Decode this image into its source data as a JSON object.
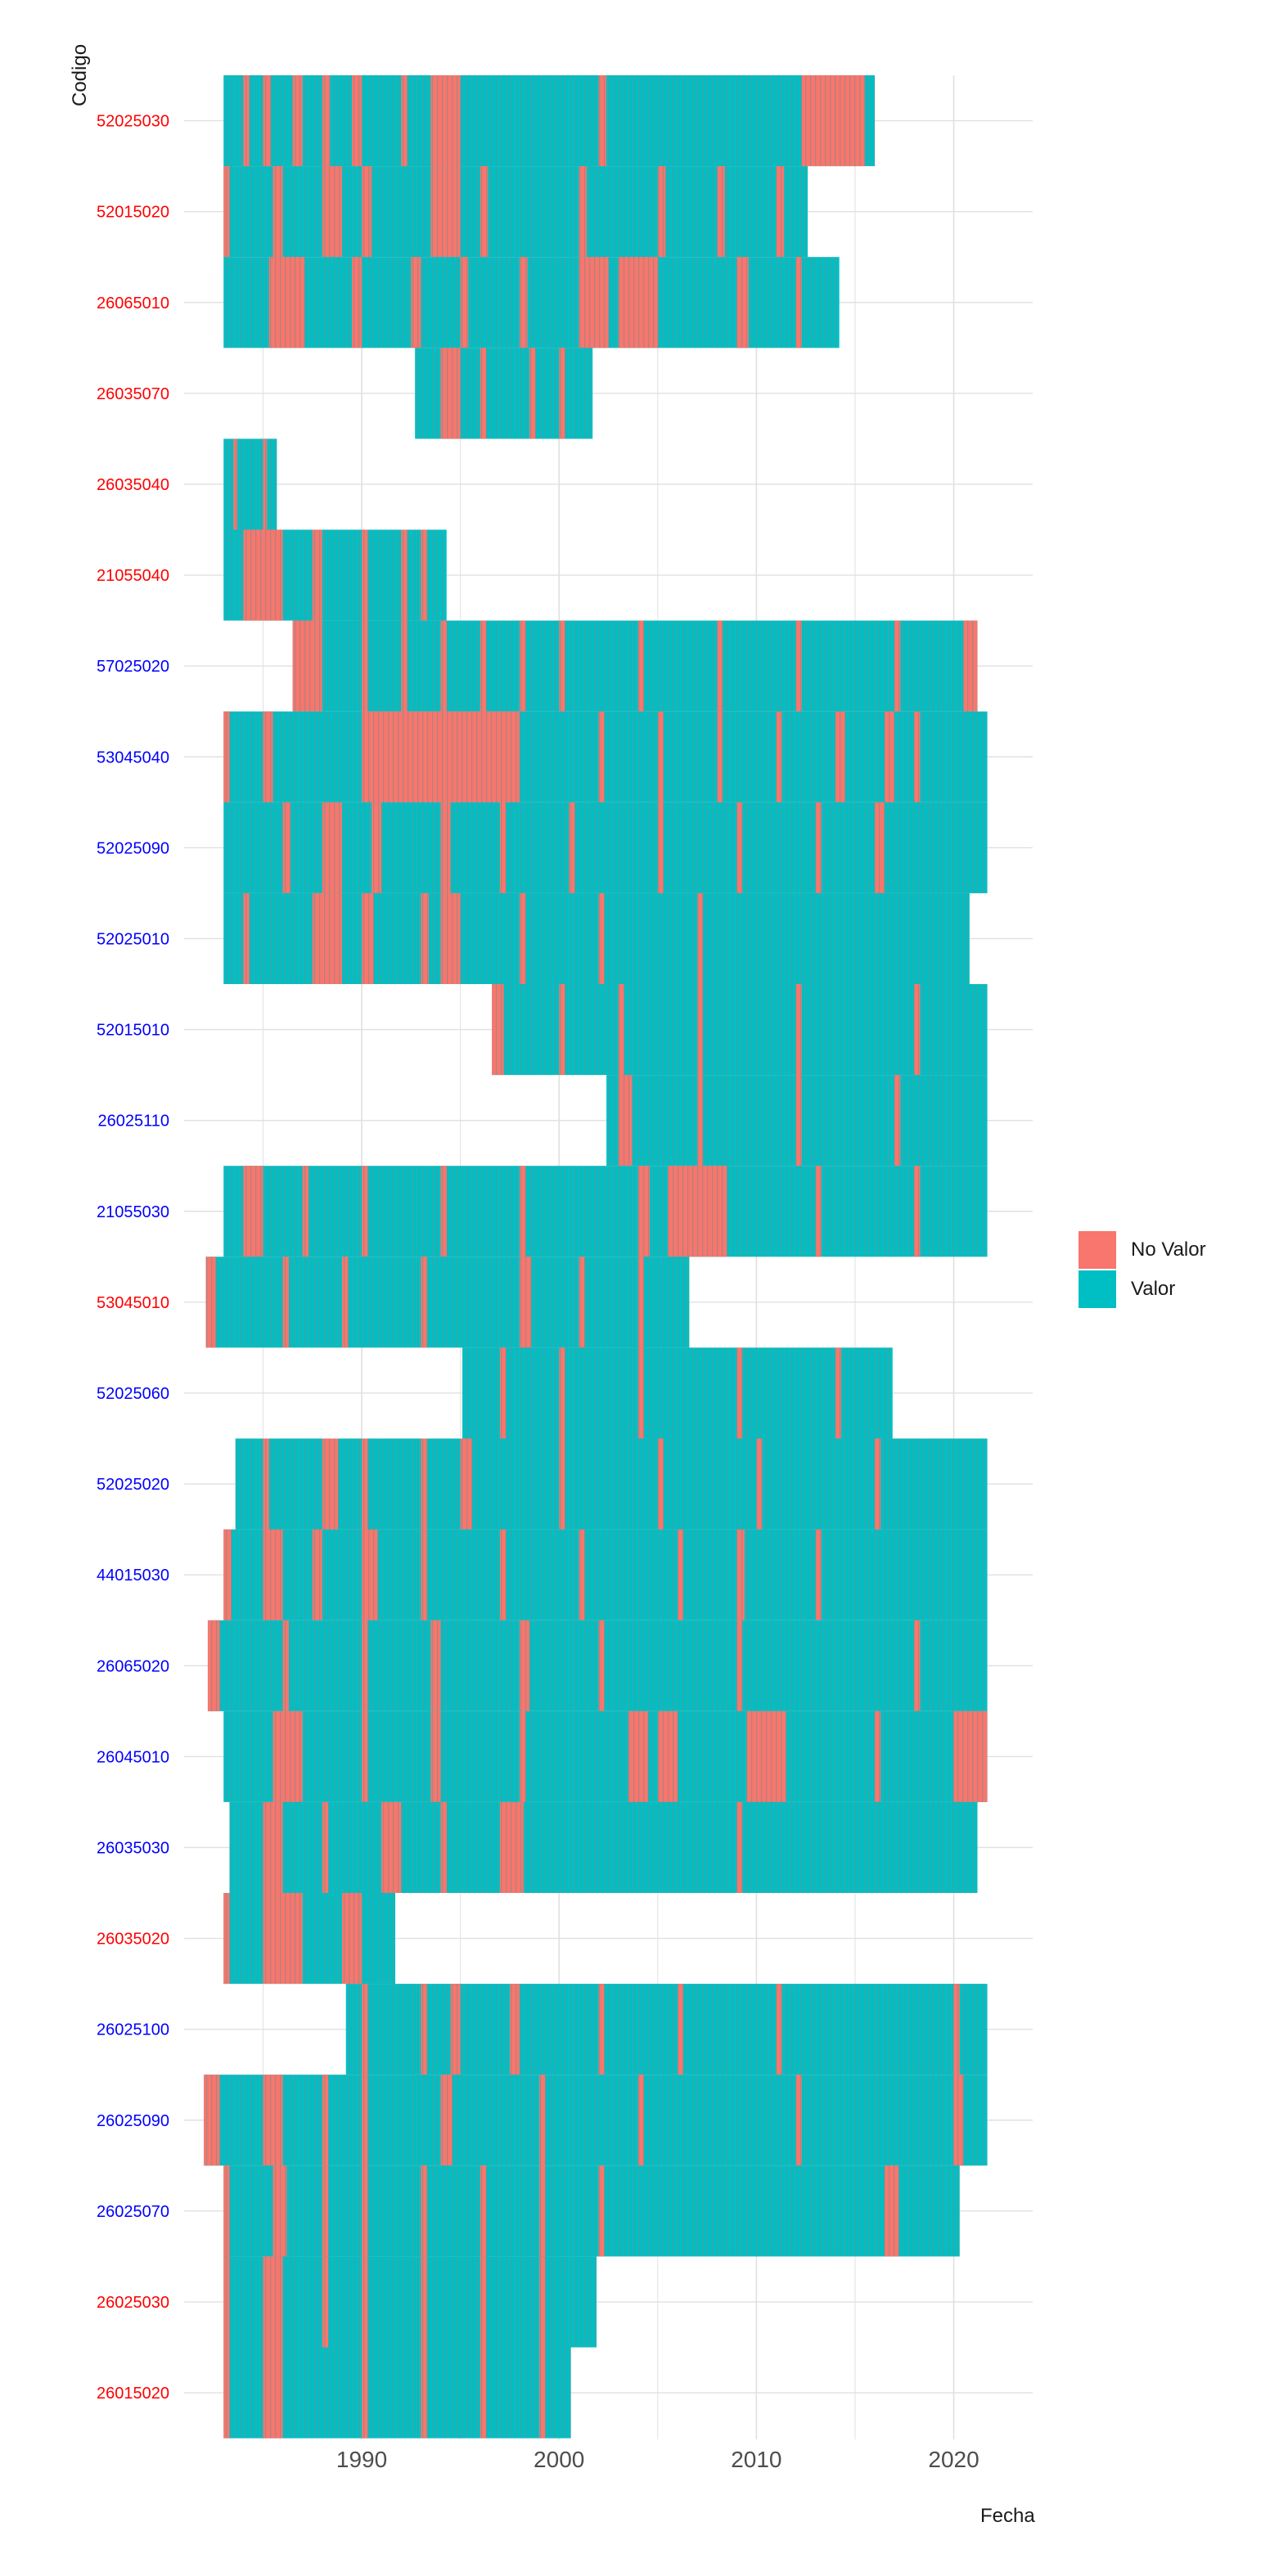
{
  "chart_data": {
    "type": "heatmap",
    "title": "",
    "xlabel": "Fecha",
    "ylabel": "Codigo",
    "xlim": [
      1981,
      2024
    ],
    "x_ticks": [
      1990,
      2000,
      2010,
      2020
    ],
    "grid": true,
    "legend": {
      "position": "right",
      "entries": [
        {
          "label": "No Valor",
          "color": "#F8766D"
        },
        {
          "label": "Valor",
          "color": "#00BFC4"
        }
      ]
    },
    "label_colors": {
      "red": "#ff0000",
      "blue": "#0000ff"
    },
    "stations": [
      {
        "code": "52025030",
        "label_color": "red",
        "start": 1983.0,
        "end": 2016.0,
        "no_valor": [
          [
            1984.0,
            1984.3
          ],
          [
            1985.0,
            1985.4
          ],
          [
            1986.5,
            1987.0
          ],
          [
            1988.0,
            1988.4
          ],
          [
            1989.5,
            1990.0
          ],
          [
            1992.0,
            1992.3
          ],
          [
            1993.5,
            1995.0
          ],
          [
            2002.0,
            2002.4
          ],
          [
            2012.3,
            2015.5
          ]
        ]
      },
      {
        "code": "52015020",
        "label_color": "red",
        "start": 1983.0,
        "end": 2012.6,
        "no_valor": [
          [
            1983.0,
            1983.3
          ],
          [
            1985.5,
            1986.0
          ],
          [
            1988.0,
            1989.0
          ],
          [
            1990.0,
            1990.5
          ],
          [
            1993.5,
            1995.0
          ],
          [
            1996.0,
            1996.4
          ],
          [
            2001.0,
            2001.4
          ],
          [
            2005.0,
            2005.4
          ],
          [
            2008.0,
            2008.4
          ],
          [
            2011.0,
            2011.4
          ]
        ]
      },
      {
        "code": "26065010",
        "label_color": "red",
        "start": 1983.0,
        "end": 2014.2,
        "no_valor": [
          [
            1985.3,
            1987.1
          ],
          [
            1989.5,
            1990.0
          ],
          [
            1992.5,
            1993.0
          ],
          [
            1995.0,
            1995.4
          ],
          [
            1998.0,
            1998.4
          ],
          [
            2001.0,
            2002.5
          ],
          [
            2003.0,
            2005.0
          ],
          [
            2009.0,
            2009.6
          ],
          [
            2012.0,
            2012.3
          ]
        ]
      },
      {
        "code": "26035070",
        "label_color": "red",
        "start": 1992.7,
        "end": 2001.7,
        "no_valor": [
          [
            1994.0,
            1995.0
          ],
          [
            1996.0,
            1996.3
          ],
          [
            1998.5,
            1998.8
          ],
          [
            2000.0,
            2000.3
          ]
        ]
      },
      {
        "code": "26035040",
        "label_color": "red",
        "start": 1983.0,
        "end": 1985.7,
        "no_valor": [
          [
            1983.5,
            1983.7
          ],
          [
            1985.0,
            1985.2
          ]
        ]
      },
      {
        "code": "21055040",
        "label_color": "red",
        "start": 1983.0,
        "end": 1994.3,
        "no_valor": [
          [
            1984.0,
            1986.0
          ],
          [
            1987.5,
            1988.0
          ],
          [
            1990.0,
            1990.3
          ],
          [
            1992.0,
            1992.3
          ],
          [
            1993.0,
            1993.3
          ]
        ]
      },
      {
        "code": "57025020",
        "label_color": "blue",
        "start": 1986.5,
        "end": 2021.2,
        "no_valor": [
          [
            1986.5,
            1988.0
          ],
          [
            1990.0,
            1990.3
          ],
          [
            1992.0,
            1992.3
          ],
          [
            1994.0,
            1994.3
          ],
          [
            1996.0,
            1996.3
          ],
          [
            1998.0,
            1998.3
          ],
          [
            2000.0,
            2000.3
          ],
          [
            2004.0,
            2004.3
          ],
          [
            2008.0,
            2008.3
          ],
          [
            2012.0,
            2012.3
          ],
          [
            2017.0,
            2017.3
          ],
          [
            2020.5,
            2021.2
          ]
        ]
      },
      {
        "code": "53045040",
        "label_color": "blue",
        "start": 1983.0,
        "end": 2021.7,
        "no_valor": [
          [
            1983.0,
            1983.3
          ],
          [
            1985.0,
            1985.5
          ],
          [
            1990.0,
            1998.0
          ],
          [
            2002.0,
            2002.3
          ],
          [
            2005.0,
            2005.3
          ],
          [
            2008.0,
            2008.3
          ],
          [
            2011.0,
            2011.3
          ],
          [
            2014.0,
            2014.5
          ],
          [
            2016.5,
            2017.0
          ],
          [
            2018.0,
            2018.3
          ]
        ]
      },
      {
        "code": "52025090",
        "label_color": "blue",
        "start": 1983.0,
        "end": 2021.7,
        "no_valor": [
          [
            1986.0,
            1986.4
          ],
          [
            1988.0,
            1989.0
          ],
          [
            1990.5,
            1991.0
          ],
          [
            1994.0,
            1994.5
          ],
          [
            1997.0,
            1997.3
          ],
          [
            2000.5,
            2000.8
          ],
          [
            2005.0,
            2005.3
          ],
          [
            2009.0,
            2009.3
          ],
          [
            2013.0,
            2013.3
          ],
          [
            2016.0,
            2016.5
          ]
        ]
      },
      {
        "code": "52025010",
        "label_color": "blue",
        "start": 1983.0,
        "end": 2020.8,
        "no_valor": [
          [
            1984.0,
            1984.3
          ],
          [
            1987.5,
            1989.0
          ],
          [
            1990.0,
            1990.6
          ],
          [
            1993.0,
            1993.4
          ],
          [
            1994.0,
            1995.0
          ],
          [
            1998.0,
            1998.3
          ],
          [
            2002.0,
            2002.3
          ],
          [
            2007.0,
            2007.3
          ]
        ]
      },
      {
        "code": "52015010",
        "label_color": "blue",
        "start": 1996.6,
        "end": 2021.7,
        "no_valor": [
          [
            1996.6,
            1997.2
          ],
          [
            2000.0,
            2000.3
          ],
          [
            2003.0,
            2003.3
          ],
          [
            2007.0,
            2007.3
          ],
          [
            2012.0,
            2012.3
          ],
          [
            2018.0,
            2018.3
          ]
        ]
      },
      {
        "code": "26025110",
        "label_color": "blue",
        "start": 2002.4,
        "end": 2021.7,
        "no_valor": [
          [
            2003.0,
            2003.7
          ],
          [
            2007.0,
            2007.3
          ],
          [
            2012.0,
            2012.3
          ],
          [
            2017.0,
            2017.3
          ]
        ]
      },
      {
        "code": "21055030",
        "label_color": "blue",
        "start": 1983.0,
        "end": 2021.7,
        "no_valor": [
          [
            1984.0,
            1985.0
          ],
          [
            1987.0,
            1987.3
          ],
          [
            1990.0,
            1990.3
          ],
          [
            1994.0,
            1994.3
          ],
          [
            1998.0,
            1998.3
          ],
          [
            2004.0,
            2004.6
          ],
          [
            2005.5,
            2008.5
          ],
          [
            2013.0,
            2013.3
          ],
          [
            2018.0,
            2018.3
          ]
        ]
      },
      {
        "code": "53045010",
        "label_color": "red",
        "start": 1982.1,
        "end": 2006.6,
        "no_valor": [
          [
            1982.1,
            1982.6
          ],
          [
            1986.0,
            1986.3
          ],
          [
            1989.0,
            1989.3
          ],
          [
            1993.0,
            1993.3
          ],
          [
            1998.0,
            1998.6
          ],
          [
            2001.0,
            2001.3
          ],
          [
            2004.0,
            2004.3
          ]
        ]
      },
      {
        "code": "52025060",
        "label_color": "blue",
        "start": 1995.1,
        "end": 2016.9,
        "no_valor": [
          [
            1997.0,
            1997.3
          ],
          [
            2000.0,
            2000.3
          ],
          [
            2004.0,
            2004.3
          ],
          [
            2009.0,
            2009.3
          ],
          [
            2014.0,
            2014.3
          ]
        ]
      },
      {
        "code": "52025020",
        "label_color": "blue",
        "start": 1983.6,
        "end": 2021.7,
        "no_valor": [
          [
            1985.0,
            1985.3
          ],
          [
            1988.0,
            1988.8
          ],
          [
            1990.0,
            1990.3
          ],
          [
            1993.0,
            1993.3
          ],
          [
            1995.0,
            1995.6
          ],
          [
            2000.0,
            2000.3
          ],
          [
            2005.0,
            2005.3
          ],
          [
            2010.0,
            2010.3
          ],
          [
            2016.0,
            2016.3
          ]
        ]
      },
      {
        "code": "44015030",
        "label_color": "blue",
        "start": 1983.0,
        "end": 2021.7,
        "no_valor": [
          [
            1983.0,
            1983.4
          ],
          [
            1985.0,
            1986.0
          ],
          [
            1987.5,
            1988.0
          ],
          [
            1990.0,
            1990.8
          ],
          [
            1993.0,
            1993.3
          ],
          [
            1997.0,
            1997.3
          ],
          [
            2001.0,
            2001.3
          ],
          [
            2006.0,
            2006.3
          ],
          [
            2009.0,
            2009.4
          ],
          [
            2013.0,
            2013.3
          ]
        ]
      },
      {
        "code": "26065020",
        "label_color": "blue",
        "start": 1982.2,
        "end": 2021.7,
        "no_valor": [
          [
            1982.2,
            1982.8
          ],
          [
            1986.0,
            1986.3
          ],
          [
            1990.0,
            1990.3
          ],
          [
            1993.5,
            1994.0
          ],
          [
            1998.0,
            1998.5
          ],
          [
            2002.0,
            2002.3
          ],
          [
            2009.0,
            2009.3
          ],
          [
            2018.0,
            2018.3
          ]
        ]
      },
      {
        "code": "26045010",
        "label_color": "blue",
        "start": 1983.0,
        "end": 2021.7,
        "no_valor": [
          [
            1985.5,
            1987.0
          ],
          [
            1990.0,
            1990.3
          ],
          [
            1993.5,
            1994.0
          ],
          [
            1998.0,
            1998.3
          ],
          [
            2003.5,
            2004.5
          ],
          [
            2005.0,
            2006.0
          ],
          [
            2009.5,
            2011.5
          ],
          [
            2016.0,
            2016.3
          ],
          [
            2020.0,
            2021.7
          ]
        ]
      },
      {
        "code": "26035030",
        "label_color": "blue",
        "start": 1983.3,
        "end": 2021.2,
        "no_valor": [
          [
            1985.0,
            1986.0
          ],
          [
            1988.0,
            1988.3
          ],
          [
            1991.0,
            1992.0
          ],
          [
            1994.0,
            1994.3
          ],
          [
            1997.0,
            1998.2
          ],
          [
            2009.0,
            2009.3
          ]
        ]
      },
      {
        "code": "26035020",
        "label_color": "red",
        "start": 1983.0,
        "end": 1991.7,
        "no_valor": [
          [
            1983.0,
            1983.3
          ],
          [
            1985.0,
            1987.0
          ],
          [
            1989.0,
            1990.0
          ]
        ]
      },
      {
        "code": "26025100",
        "label_color": "blue",
        "start": 1989.2,
        "end": 2021.7,
        "no_valor": [
          [
            1990.0,
            1990.3
          ],
          [
            1993.0,
            1993.3
          ],
          [
            1994.5,
            1995.0
          ],
          [
            1997.5,
            1998.0
          ],
          [
            2002.0,
            2002.3
          ],
          [
            2006.0,
            2006.3
          ],
          [
            2011.0,
            2011.3
          ],
          [
            2020.0,
            2020.3
          ]
        ]
      },
      {
        "code": "26025090",
        "label_color": "blue",
        "start": 1982.0,
        "end": 2021.7,
        "no_valor": [
          [
            1982.0,
            1982.8
          ],
          [
            1985.0,
            1986.0
          ],
          [
            1988.0,
            1988.3
          ],
          [
            1990.0,
            1990.3
          ],
          [
            1994.0,
            1994.6
          ],
          [
            1999.0,
            1999.3
          ],
          [
            2004.0,
            2004.3
          ],
          [
            2012.0,
            2012.3
          ],
          [
            2020.0,
            2020.5
          ]
        ]
      },
      {
        "code": "26025070",
        "label_color": "blue",
        "start": 1983.0,
        "end": 2020.3,
        "no_valor": [
          [
            1983.0,
            1983.3
          ],
          [
            1985.5,
            1986.2
          ],
          [
            1988.0,
            1988.3
          ],
          [
            1990.0,
            1990.3
          ],
          [
            1993.0,
            1993.3
          ],
          [
            1996.0,
            1996.3
          ],
          [
            1999.0,
            1999.3
          ],
          [
            2002.0,
            2002.3
          ],
          [
            2016.5,
            2017.2
          ]
        ]
      },
      {
        "code": "26025030",
        "label_color": "red",
        "start": 1983.0,
        "end": 2001.9,
        "no_valor": [
          [
            1983.0,
            1983.3
          ],
          [
            1985.0,
            1986.0
          ],
          [
            1988.0,
            1988.3
          ],
          [
            1990.0,
            1990.3
          ],
          [
            1993.0,
            1993.3
          ],
          [
            1996.0,
            1996.3
          ],
          [
            1999.0,
            1999.3
          ]
        ]
      },
      {
        "code": "26015020",
        "label_color": "red",
        "start": 1983.0,
        "end": 2000.6,
        "no_valor": [
          [
            1983.0,
            1983.3
          ],
          [
            1985.0,
            1986.0
          ],
          [
            1990.0,
            1990.3
          ],
          [
            1993.0,
            1993.3
          ],
          [
            1996.0,
            1996.3
          ],
          [
            1999.0,
            1999.3
          ]
        ]
      }
    ]
  }
}
